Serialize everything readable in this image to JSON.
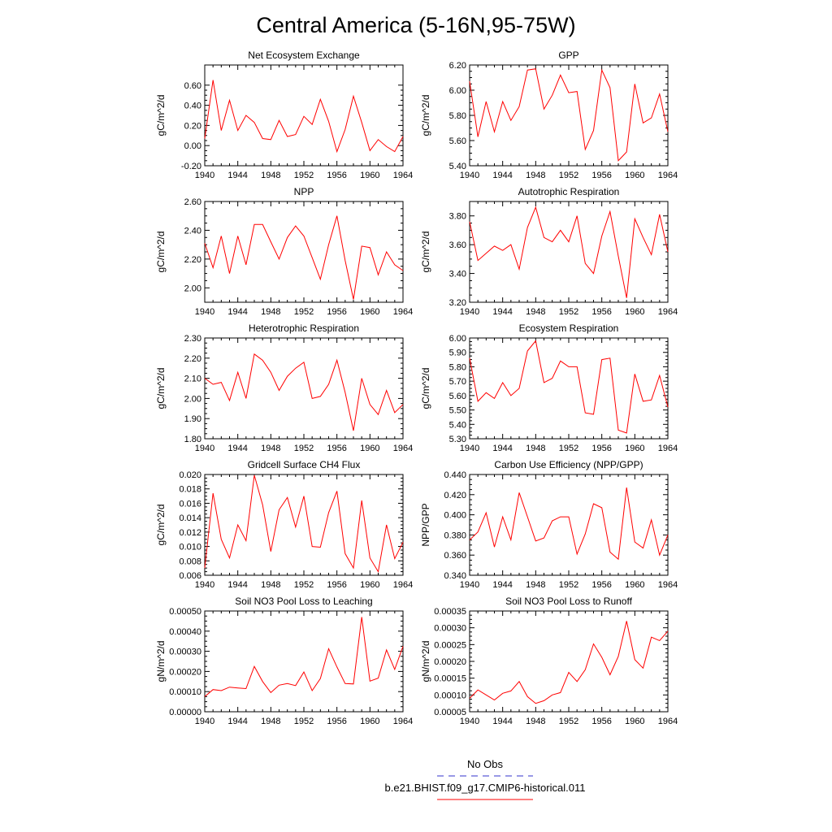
{
  "figure": {
    "title": "Central America (5-16N,95-75W)",
    "line_color": "#ff0000",
    "obs_color": "#3333cc",
    "legend": [
      {
        "label": "No Obs",
        "style": "dashed",
        "color": "#3333cc"
      },
      {
        "label": "b.e21.BHIST.f09_g17.CMIP6-historical.011",
        "style": "solid",
        "color": "#ff0000"
      }
    ]
  },
  "chart_data": [
    {
      "type": "line",
      "title": "Net Ecosystem Exchange",
      "ylabel": "gC/m^2/d",
      "x": [
        1940,
        1941,
        1942,
        1943,
        1944,
        1945,
        1946,
        1947,
        1948,
        1949,
        1950,
        1951,
        1952,
        1953,
        1954,
        1955,
        1956,
        1957,
        1958,
        1959,
        1960,
        1961,
        1962,
        1963,
        1964
      ],
      "values": [
        0.07,
        0.65,
        0.15,
        0.45,
        0.15,
        0.3,
        0.23,
        0.07,
        0.06,
        0.25,
        0.09,
        0.11,
        0.29,
        0.21,
        0.46,
        0.24,
        -0.06,
        0.16,
        0.49,
        0.23,
        -0.05,
        0.06,
        -0.01,
        -0.06,
        0.09
      ],
      "xlim": [
        1940,
        1964
      ],
      "ylim": [
        -0.2,
        0.8
      ],
      "yticks": [
        -0.2,
        0.0,
        0.2,
        0.4,
        0.6
      ],
      "ytick_labels": [
        "-0.20",
        "0.00",
        "0.20",
        "0.40",
        "0.60"
      ],
      "xticks": [
        1940,
        1944,
        1948,
        1952,
        1956,
        1960,
        1964
      ],
      "xtick_labels": [
        "1940",
        "1944",
        "1948",
        "1952",
        "1956",
        "1960",
        "1964"
      ]
    },
    {
      "type": "line",
      "title": "GPP",
      "ylabel": "gC/m^2/d",
      "x": [
        1940,
        1941,
        1942,
        1943,
        1944,
        1945,
        1946,
        1947,
        1948,
        1949,
        1950,
        1951,
        1952,
        1953,
        1954,
        1955,
        1956,
        1957,
        1958,
        1959,
        1960,
        1961,
        1962,
        1963,
        1964
      ],
      "values": [
        6.07,
        5.63,
        5.91,
        5.67,
        5.91,
        5.76,
        5.87,
        6.16,
        6.17,
        5.85,
        5.96,
        6.12,
        5.98,
        5.99,
        5.53,
        5.68,
        6.16,
        6.02,
        5.44,
        5.51,
        6.05,
        5.74,
        5.78,
        5.97,
        5.67
      ],
      "xlim": [
        1940,
        1964
      ],
      "ylim": [
        5.4,
        6.2
      ],
      "yticks": [
        5.4,
        5.6,
        5.8,
        6.0,
        6.2
      ],
      "ytick_labels": [
        "5.40",
        "5.60",
        "5.80",
        "6.00",
        "6.20"
      ],
      "xticks": [
        1940,
        1944,
        1948,
        1952,
        1956,
        1960,
        1964
      ],
      "xtick_labels": [
        "1940",
        "1944",
        "1948",
        "1952",
        "1956",
        "1960",
        "1964"
      ]
    },
    {
      "type": "line",
      "title": "NPP",
      "ylabel": "gC/m^2/d",
      "x": [
        1940,
        1941,
        1942,
        1943,
        1944,
        1945,
        1946,
        1947,
        1948,
        1949,
        1950,
        1951,
        1952,
        1953,
        1954,
        1955,
        1956,
        1957,
        1958,
        1959,
        1960,
        1961,
        1962,
        1963,
        1964
      ],
      "values": [
        2.31,
        2.14,
        2.36,
        2.1,
        2.36,
        2.16,
        2.44,
        2.44,
        2.32,
        2.2,
        2.35,
        2.43,
        2.36,
        2.21,
        2.06,
        2.3,
        2.5,
        2.19,
        1.92,
        2.29,
        2.28,
        2.09,
        2.25,
        2.16,
        2.12
      ],
      "xlim": [
        1940,
        1964
      ],
      "ylim": [
        1.9,
        2.6
      ],
      "yticks": [
        2.0,
        2.2,
        2.4,
        2.6
      ],
      "ytick_labels": [
        "2.00",
        "2.20",
        "2.40",
        "2.60"
      ],
      "xticks": [
        1940,
        1944,
        1948,
        1952,
        1956,
        1960,
        1964
      ],
      "xtick_labels": [
        "1940",
        "1944",
        "1948",
        "1952",
        "1956",
        "1960",
        "1964"
      ]
    },
    {
      "type": "line",
      "title": "Autotrophic Respiration",
      "ylabel": "gC/m^2/d",
      "x": [
        1940,
        1941,
        1942,
        1943,
        1944,
        1945,
        1946,
        1947,
        1948,
        1949,
        1950,
        1951,
        1952,
        1953,
        1954,
        1955,
        1956,
        1957,
        1958,
        1959,
        1960,
        1961,
        1962,
        1963,
        1964
      ],
      "values": [
        3.76,
        3.49,
        3.54,
        3.59,
        3.56,
        3.6,
        3.43,
        3.72,
        3.86,
        3.65,
        3.62,
        3.7,
        3.62,
        3.8,
        3.47,
        3.4,
        3.66,
        3.83,
        3.52,
        3.23,
        3.78,
        3.65,
        3.53,
        3.81,
        3.55
      ],
      "xlim": [
        1940,
        1964
      ],
      "ylim": [
        3.2,
        3.9
      ],
      "yticks": [
        3.2,
        3.4,
        3.6,
        3.8
      ],
      "ytick_labels": [
        "3.20",
        "3.40",
        "3.60",
        "3.80"
      ],
      "xticks": [
        1940,
        1944,
        1948,
        1952,
        1956,
        1960,
        1964
      ],
      "xtick_labels": [
        "1940",
        "1944",
        "1948",
        "1952",
        "1956",
        "1960",
        "1964"
      ]
    },
    {
      "type": "line",
      "title": "Heterotrophic Respiration",
      "ylabel": "gC/m^2/d",
      "x": [
        1940,
        1941,
        1942,
        1943,
        1944,
        1945,
        1946,
        1947,
        1948,
        1949,
        1950,
        1951,
        1952,
        1953,
        1954,
        1955,
        1956,
        1957,
        1958,
        1959,
        1960,
        1961,
        1962,
        1963,
        1964
      ],
      "values": [
        2.1,
        2.07,
        2.08,
        1.99,
        2.13,
        2.0,
        2.22,
        2.19,
        2.13,
        2.04,
        2.11,
        2.15,
        2.18,
        2.0,
        2.01,
        2.07,
        2.19,
        2.03,
        1.84,
        2.1,
        1.97,
        1.92,
        2.04,
        1.93,
        1.97
      ],
      "xlim": [
        1940,
        1964
      ],
      "ylim": [
        1.8,
        2.3
      ],
      "yticks": [
        1.8,
        1.9,
        2.0,
        2.1,
        2.2,
        2.3
      ],
      "ytick_labels": [
        "1.80",
        "1.90",
        "2.00",
        "2.10",
        "2.20",
        "2.30"
      ],
      "xticks": [
        1940,
        1944,
        1948,
        1952,
        1956,
        1960,
        1964
      ],
      "xtick_labels": [
        "1940",
        "1944",
        "1948",
        "1952",
        "1956",
        "1960",
        "1964"
      ]
    },
    {
      "type": "line",
      "title": "Ecosystem Respiration",
      "ylabel": "gC/m^2/d",
      "x": [
        1940,
        1941,
        1942,
        1943,
        1944,
        1945,
        1946,
        1947,
        1948,
        1949,
        1950,
        1951,
        1952,
        1953,
        1954,
        1955,
        1956,
        1957,
        1958,
        1959,
        1960,
        1961,
        1962,
        1963,
        1964
      ],
      "values": [
        5.86,
        5.56,
        5.62,
        5.58,
        5.69,
        5.6,
        5.65,
        5.91,
        5.98,
        5.69,
        5.72,
        5.84,
        5.8,
        5.8,
        5.48,
        5.47,
        5.85,
        5.86,
        5.36,
        5.34,
        5.75,
        5.56,
        5.57,
        5.74,
        5.52
      ],
      "xlim": [
        1940,
        1964
      ],
      "ylim": [
        5.3,
        6.0
      ],
      "yticks": [
        5.3,
        5.4,
        5.5,
        5.6,
        5.7,
        5.8,
        5.9,
        6.0
      ],
      "ytick_labels": [
        "5.30",
        "5.40",
        "5.50",
        "5.60",
        "5.70",
        "5.80",
        "5.90",
        "6.00"
      ],
      "xticks": [
        1940,
        1944,
        1948,
        1952,
        1956,
        1960,
        1964
      ],
      "xtick_labels": [
        "1940",
        "1944",
        "1948",
        "1952",
        "1956",
        "1960",
        "1964"
      ]
    },
    {
      "type": "line",
      "title": "Gridcell Surface CH4 Flux",
      "ylabel": "gC/m^2/d",
      "x": [
        1940,
        1941,
        1942,
        1943,
        1944,
        1945,
        1946,
        1947,
        1948,
        1949,
        1950,
        1951,
        1952,
        1953,
        1954,
        1955,
        1956,
        1957,
        1958,
        1959,
        1960,
        1961,
        1962,
        1963,
        1964
      ],
      "values": [
        0.007,
        0.0174,
        0.011,
        0.0084,
        0.013,
        0.0108,
        0.0199,
        0.0158,
        0.0093,
        0.0151,
        0.0168,
        0.0127,
        0.017,
        0.01,
        0.0099,
        0.0147,
        0.0177,
        0.009,
        0.007,
        0.0164,
        0.0084,
        0.0065,
        0.013,
        0.0083,
        0.0106
      ],
      "xlim": [
        1940,
        1964
      ],
      "ylim": [
        0.006,
        0.02
      ],
      "yticks": [
        0.006,
        0.008,
        0.01,
        0.012,
        0.014,
        0.016,
        0.018,
        0.02
      ],
      "ytick_labels": [
        "0.006",
        "0.008",
        "0.010",
        "0.012",
        "0.014",
        "0.016",
        "0.018",
        "0.020"
      ],
      "xticks": [
        1940,
        1944,
        1948,
        1952,
        1956,
        1960,
        1964
      ],
      "xtick_labels": [
        "1940",
        "1944",
        "1948",
        "1952",
        "1956",
        "1960",
        "1964"
      ]
    },
    {
      "type": "line",
      "title": "Carbon Use Efficiency (NPP/GPP)",
      "ylabel": "NPP/GPP",
      "x": [
        1940,
        1941,
        1942,
        1943,
        1944,
        1945,
        1946,
        1947,
        1948,
        1949,
        1950,
        1951,
        1952,
        1953,
        1954,
        1955,
        1956,
        1957,
        1958,
        1959,
        1960,
        1961,
        1962,
        1963,
        1964
      ],
      "values": [
        0.375,
        0.383,
        0.402,
        0.368,
        0.398,
        0.375,
        0.422,
        0.398,
        0.374,
        0.377,
        0.394,
        0.398,
        0.398,
        0.361,
        0.381,
        0.411,
        0.407,
        0.363,
        0.356,
        0.427,
        0.373,
        0.367,
        0.395,
        0.36,
        0.38
      ],
      "xlim": [
        1940,
        1964
      ],
      "ylim": [
        0.34,
        0.44
      ],
      "yticks": [
        0.34,
        0.36,
        0.38,
        0.4,
        0.42,
        0.44
      ],
      "ytick_labels": [
        "0.340",
        "0.360",
        "0.380",
        "0.400",
        "0.420",
        "0.440"
      ],
      "xticks": [
        1940,
        1944,
        1948,
        1952,
        1956,
        1960,
        1964
      ],
      "xtick_labels": [
        "1940",
        "1944",
        "1948",
        "1952",
        "1956",
        "1960",
        "1964"
      ]
    },
    {
      "type": "line",
      "title": "Soil NO3 Pool Loss to Leaching",
      "ylabel": "gN/m^2/d",
      "x": [
        1940,
        1941,
        1942,
        1943,
        1944,
        1945,
        1946,
        1947,
        1948,
        1949,
        1950,
        1951,
        1952,
        1953,
        1954,
        1955,
        1956,
        1957,
        1958,
        1959,
        1960,
        1961,
        1962,
        1963,
        1964
      ],
      "values": [
        7.5e-05,
        0.00011,
        0.000105,
        0.000122,
        0.000118,
        0.000115,
        0.000225,
        0.00015,
        9.5e-05,
        0.000132,
        0.00014,
        0.00013,
        0.000197,
        0.000105,
        0.000165,
        0.000313,
        0.000222,
        0.00014,
        0.000138,
        0.00047,
        0.000152,
        0.000167,
        0.000307,
        0.00021,
        0.000325
      ],
      "xlim": [
        1940,
        1964
      ],
      "ylim": [
        0,
        0.0005
      ],
      "yticks": [
        0,
        0.0001,
        0.0002,
        0.0003,
        0.0004,
        0.0005
      ],
      "ytick_labels": [
        "0.00000",
        "0.00010",
        "0.00020",
        "0.00030",
        "0.00040",
        "0.00050"
      ],
      "xticks": [
        1940,
        1944,
        1948,
        1952,
        1956,
        1960,
        1964
      ],
      "xtick_labels": [
        "1940",
        "1944",
        "1948",
        "1952",
        "1956",
        "1960",
        "1964"
      ]
    },
    {
      "type": "line",
      "title": "Soil NO3 Pool Loss to Runoff",
      "ylabel": "gN/m^2/d",
      "x": [
        1940,
        1941,
        1942,
        1943,
        1944,
        1945,
        1946,
        1947,
        1948,
        1949,
        1950,
        1951,
        1952,
        1953,
        1954,
        1955,
        1956,
        1957,
        1958,
        1959,
        1960,
        1961,
        1962,
        1963,
        1964
      ],
      "values": [
        9e-05,
        0.000115,
        0.0001,
        8.5e-05,
        0.000105,
        0.000112,
        0.00014,
        9.5e-05,
        7.5e-05,
        8.3e-05,
        0.0001,
        0.000107,
        0.000167,
        0.00014,
        0.000175,
        0.000252,
        0.000212,
        0.00016,
        0.000215,
        0.00032,
        0.000205,
        0.00018,
        0.000272,
        0.000262,
        0.00029
      ],
      "xlim": [
        1940,
        1964
      ],
      "ylim": [
        5e-05,
        0.00035
      ],
      "yticks": [
        5e-05,
        0.0001,
        0.00015,
        0.0002,
        0.00025,
        0.0003,
        0.00035
      ],
      "ytick_labels": [
        "0.00005",
        "0.00010",
        "0.00015",
        "0.00020",
        "0.00025",
        "0.00030",
        "0.00035"
      ],
      "xticks": [
        1940,
        1944,
        1948,
        1952,
        1956,
        1960,
        1964
      ],
      "xtick_labels": [
        "1940",
        "1944",
        "1948",
        "1952",
        "1956",
        "1960",
        "1964"
      ]
    }
  ]
}
